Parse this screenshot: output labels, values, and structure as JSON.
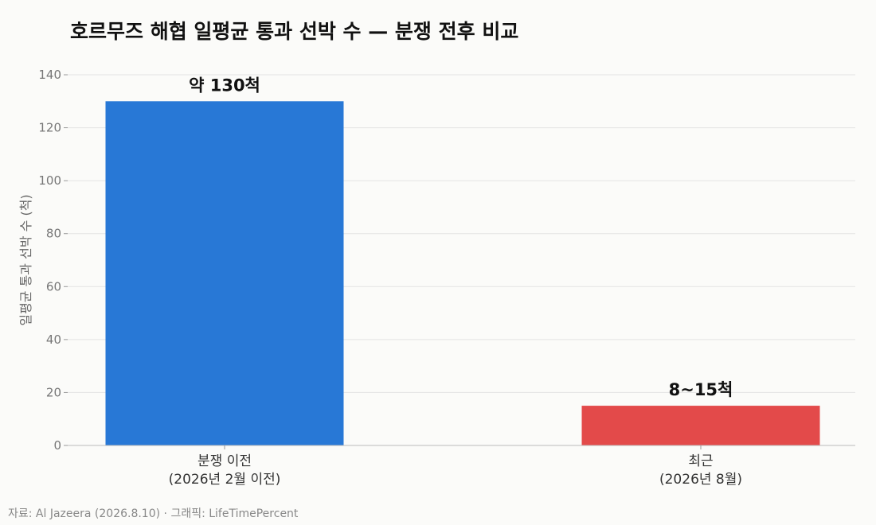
{
  "chart_data": {
    "type": "bar",
    "title": "호르무즈 해협 일평균 통과 선박 수 — 분쟁 전후 비교",
    "ylabel": "일평균 통과 선박 수 (척)",
    "xlabel": "",
    "ylim": [
      0,
      140
    ],
    "yticks": [
      0,
      20,
      40,
      60,
      80,
      100,
      120,
      140
    ],
    "grid": true,
    "categories": [
      [
        "분쟁 이전",
        "(2026년 2월 이전)"
      ],
      [
        "최근",
        "(2026년 8월)"
      ]
    ],
    "values": [
      130,
      15
    ],
    "ranges": [
      null,
      [
        8,
        15
      ]
    ],
    "data_labels": [
      "약 130척",
      "8~15척"
    ],
    "colors": [
      "#2878d6",
      "#e34a4a"
    ]
  },
  "source": "자료: Al Jazeera (2026.8.10) · 그래픽: LifeTimePercent"
}
